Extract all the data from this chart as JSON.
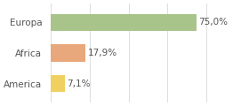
{
  "categories": [
    "Europa",
    "Africa",
    "America"
  ],
  "values": [
    75.0,
    17.9,
    7.1
  ],
  "bar_colors": [
    "#a8c48a",
    "#e8a87c",
    "#f0d060"
  ],
  "labels": [
    "75,0%",
    "17,9%",
    "7,1%"
  ],
  "background_color": "#ffffff",
  "xlim": [
    0,
    100
  ],
  "label_fontsize": 7.5,
  "tick_fontsize": 7.5
}
